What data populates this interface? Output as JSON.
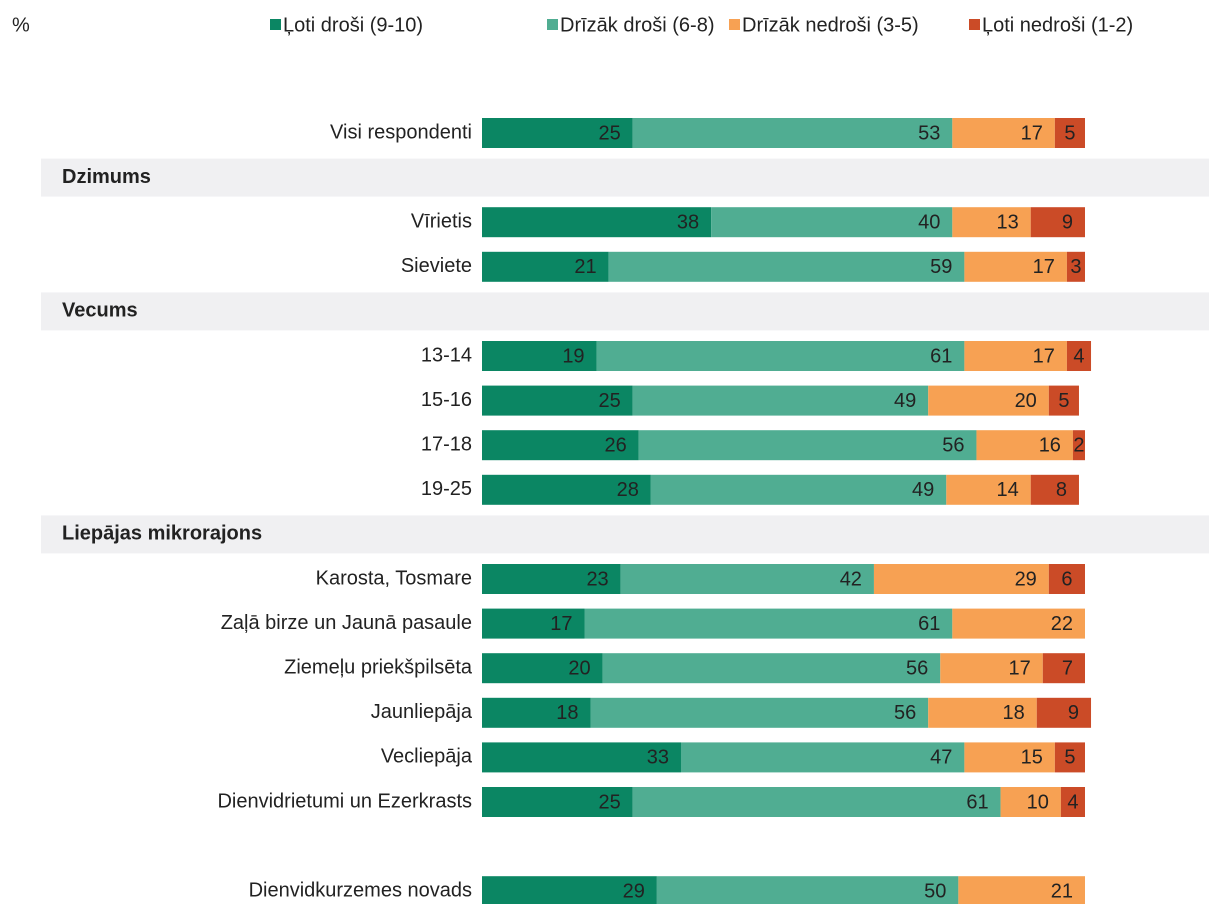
{
  "chart_data": {
    "type": "stacked_bar",
    "unit_label": "%",
    "xlim": [
      0,
      100
    ],
    "categories": [
      "Visi respondenti",
      "Dzimums",
      "Vīrietis",
      "Sieviete",
      "Vecums",
      "13-14",
      "15-16",
      "17-18",
      "19-25",
      "Liepājas mikrorajons",
      "Karosta, Tosmare",
      "Zaļā birze un Jaunā pasaule",
      "Ziemeļu priekšpilsēta",
      "Jaunliepāja",
      "Vecliepāja",
      "Dienvidrietumi un Ezerkrasts",
      null,
      "Dienvidkurzemes novads"
    ],
    "series": [
      {
        "name": "Ļoti droši (9-10)",
        "color": "#0b8663",
        "label_color": "#ffffff",
        "values": [
          25,
          null,
          38,
          21,
          null,
          19,
          25,
          26,
          28,
          null,
          23,
          17,
          20,
          18,
          33,
          25,
          null,
          29
        ]
      },
      {
        "name": "Drīzāk droši (6-8)",
        "color": "#50ad92",
        "label_color": "#ffffff",
        "values": [
          53,
          null,
          40,
          59,
          null,
          61,
          49,
          56,
          49,
          null,
          42,
          61,
          56,
          56,
          47,
          61,
          null,
          50
        ]
      },
      {
        "name": "Drīzāk nedroši (3-5)",
        "color": "#f7a153",
        "label_color": "#666666",
        "values": [
          17,
          null,
          13,
          17,
          null,
          17,
          20,
          16,
          14,
          null,
          29,
          22,
          17,
          18,
          15,
          10,
          null,
          21
        ]
      },
      {
        "name": "Ļoti nedroši (1-2)",
        "color": "#cb4b27",
        "label_color": "#ffffff",
        "values": [
          5,
          null,
          9,
          3,
          null,
          4,
          5,
          2,
          8,
          null,
          6,
          null,
          7,
          9,
          5,
          4,
          null,
          null
        ]
      }
    ]
  }
}
